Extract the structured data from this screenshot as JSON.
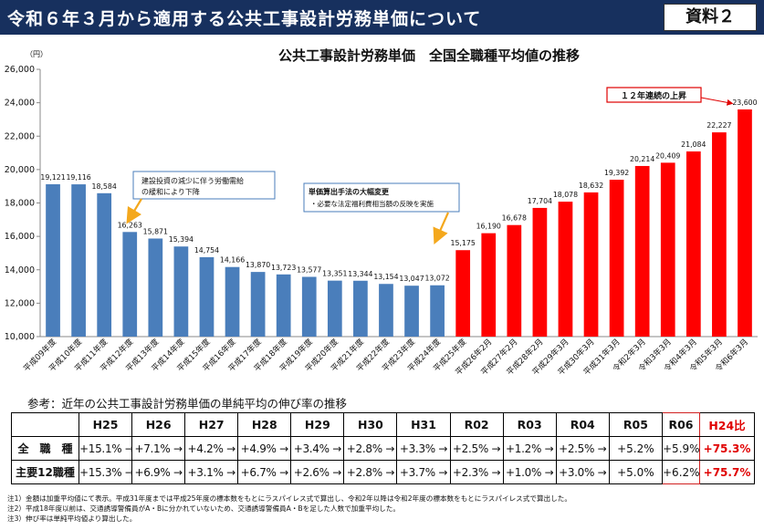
{
  "header": {
    "title": "令和６年３月から適用する公共工事設計労務単価について",
    "doc_label": "資料２"
  },
  "chart_data": {
    "type": "bar",
    "title": "公共工事設計労務単価　全国全職種平均値の推移",
    "ylabel": "（円）",
    "ylim": [
      10000,
      26000
    ],
    "yticks": [
      10000,
      12000,
      14000,
      16000,
      18000,
      20000,
      22000,
      24000,
      26000
    ],
    "grid": false,
    "categories": [
      "平成09年度",
      "平成10年度",
      "平成11年度",
      "平成12年度",
      "平成13年度",
      "平成14年度",
      "平成15年度",
      "平成16年度",
      "平成17年度",
      "平成18年度",
      "平成19年度",
      "平成20年度",
      "平成21年度",
      "平成22年度",
      "平成23年度",
      "平成24年度",
      "平成25年度",
      "平成26年2月",
      "平成27年2月",
      "平成28年2月",
      "平成29年3月",
      "平成30年3月",
      "平成31年3月",
      "令和2年3月",
      "令和3年3月",
      "令和4年3月",
      "令和5年3月",
      "令和6年3月"
    ],
    "values": [
      19121,
      19116,
      18584,
      16263,
      15871,
      15394,
      14754,
      14166,
      13870,
      13723,
      13577,
      13351,
      13344,
      13154,
      13047,
      13072,
      15175,
      16190,
      16678,
      17704,
      18078,
      18632,
      19392,
      20214,
      20409,
      21084,
      22227,
      23600
    ],
    "value_labels": [
      "19,121",
      "19,116",
      "18,584",
      "16,263",
      "15,871",
      "15,394",
      "14,754",
      "14,166",
      "13,870",
      "13,723",
      "13,577",
      "13,351",
      "13,344",
      "13,154",
      "13,047",
      "13,072",
      "15,175",
      "16,190",
      "16,678",
      "17,704",
      "18,078",
      "18,632",
      "19,392",
      "20,214",
      "20,409",
      "21,084",
      "22,227",
      "23,600"
    ],
    "colors": {
      "declining": "#4a7ebb",
      "rising": "#ff0000"
    },
    "rising_from_index": 16,
    "annotations": {
      "decline": [
        "建設投資の減少に伴う労働需給",
        "の緩和により下降"
      ],
      "revision_title": "単価算出手法の大幅変更",
      "revision_body": "・必要な法定福利費相当額の反映を実施",
      "streak": "１２年連続の上昇"
    }
  },
  "growth_table": {
    "title": "参考：近年の公共工事設計労務単価の単純平均の伸び率の推移",
    "headers": [
      "H25",
      "H26",
      "H27",
      "H28",
      "H29",
      "H30",
      "H31",
      "R02",
      "R03",
      "R04",
      "R05",
      "R06",
      "H24比"
    ],
    "rows": [
      {
        "label": "全　職　種",
        "values": [
          "+15.1%",
          "+7.1%",
          "+4.2%",
          "+4.9%",
          "+3.4%",
          "+2.8%",
          "+3.3%",
          "+2.5%",
          "+1.2%",
          "+2.5%",
          "+5.2%",
          "+5.9%",
          "+75.3%"
        ]
      },
      {
        "label": "主要12職種",
        "values": [
          "+15.3%",
          "+6.9%",
          "+3.1%",
          "+6.7%",
          "+2.6%",
          "+2.8%",
          "+3.7%",
          "+2.3%",
          "+1.0%",
          "+3.0%",
          "+5.0%",
          "+6.2%",
          "+75.7%"
        ]
      }
    ],
    "arrow": "→"
  },
  "notes": [
    "注1）金額は加重平均値にて表示。平成31年度までは平成25年度の標本数をもとにラスパイレス式で算出し、令和2年以降は令和2年度の標本数をもとにラスパイレス式で算出した。",
    "注2）平成18年度以前は、交通誘導警備員がA・Bに分かれていないため、交通誘導警備員A・Bを足した人数で加重平均した。",
    "注3）伸び率は単純平均値より算出した。"
  ]
}
